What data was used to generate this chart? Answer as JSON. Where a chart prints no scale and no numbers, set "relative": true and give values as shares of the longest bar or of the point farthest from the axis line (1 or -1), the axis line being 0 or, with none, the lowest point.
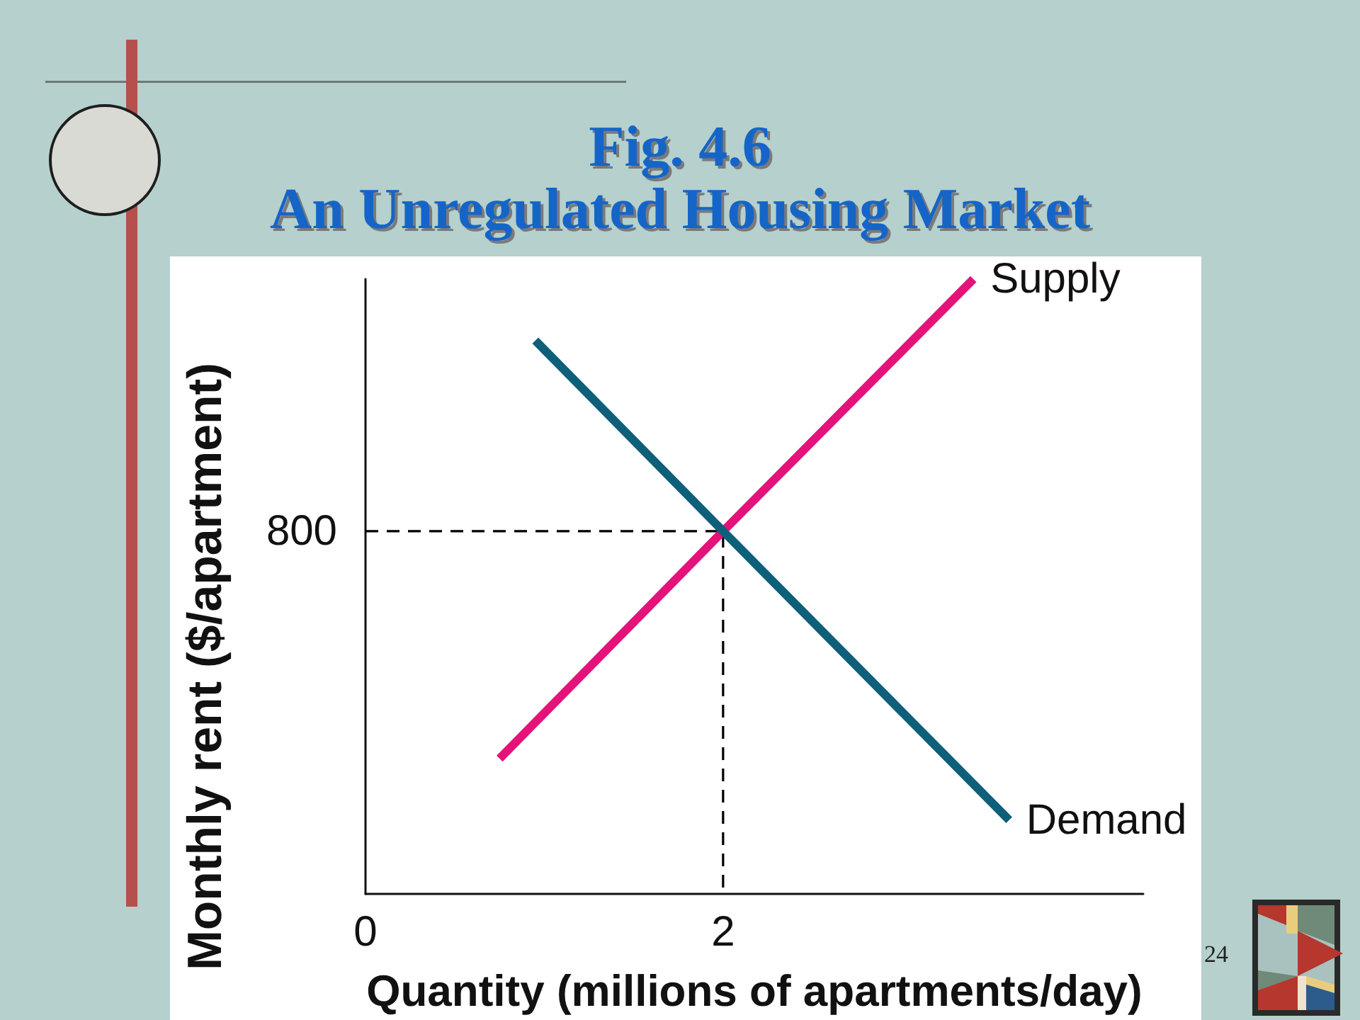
{
  "chart_data": {
    "type": "line",
    "title": "Fig. 4.6",
    "subtitle": "An Unregulated Housing Market",
    "xlabel": "Quantity (millions of apartments/day)",
    "ylabel": "Monthly rent ($/apartment)",
    "annotations": [
      {
        "text": "800",
        "x": 0,
        "y": 0.59
      },
      "24"
    ],
    "relative": true,
    "xlim": [
      0,
      4.35
    ],
    "xticks": [
      0,
      2
    ],
    "series": [
      {
        "name": "Supply",
        "color": "#e4137a",
        "x": [
          0.75,
          2,
          3.4
        ],
        "values": [
          0.22,
          0.59,
          1
        ]
      },
      {
        "name": "Demand",
        "color": "#0e5f7a",
        "x": [
          0.95,
          2,
          3.6
        ],
        "values": [
          0.9,
          0.59,
          0.12
        ]
      },
      {
        "color": "#000000",
        "line_style": "dashed",
        "x": [
          0,
          2,
          2
        ],
        "values": [
          0.59,
          0.59,
          0
        ]
      }
    ],
    "marker": "none",
    "line_style": "solid",
    "grid": false,
    "legend": false
  }
}
